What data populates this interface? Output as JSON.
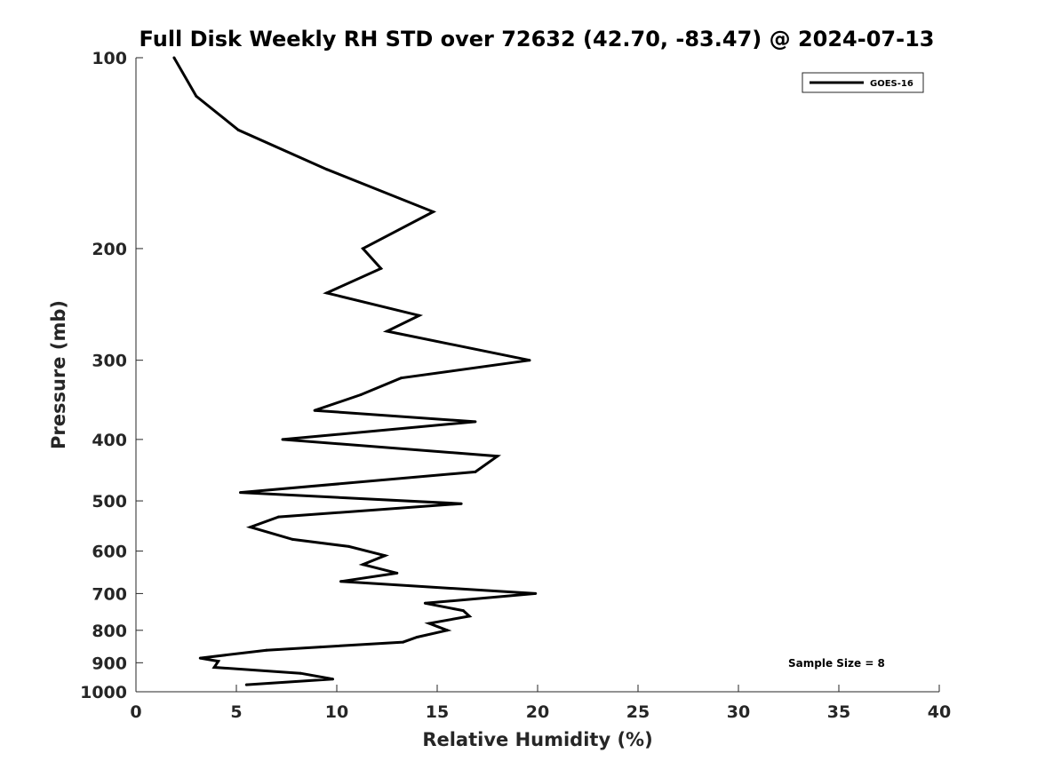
{
  "chart_data": {
    "type": "line",
    "title": "Full Disk Weekly RH STD over 72632 (42.70, -83.47) @ 2024-07-13",
    "xlabel": "Relative Humidity (%)",
    "ylabel": "Pressure (mb)",
    "xlim": [
      0,
      40
    ],
    "ylim": [
      100,
      1000
    ],
    "yscale": "log",
    "y_reversed": true,
    "grid": false,
    "x_ticks": [
      0,
      5,
      10,
      15,
      20,
      25,
      30,
      35,
      40
    ],
    "x_tick_labels": [
      "0",
      "5",
      "10",
      "15",
      "20",
      "25",
      "30",
      "35",
      "40"
    ],
    "y_ticks": [
      100,
      200,
      300,
      400,
      500,
      600,
      700,
      800,
      900,
      1000
    ],
    "y_tick_labels": [
      "100",
      "200",
      "300",
      "400",
      "500",
      "600",
      "700",
      "800",
      "900",
      "1000"
    ],
    "legend_position": "top-right",
    "series": [
      {
        "name": "GOES-16",
        "color": "#000000",
        "x": [
          1.9,
          3.0,
          5.1,
          9.5,
          14.8,
          11.3,
          12.2,
          9.5,
          14.1,
          12.5,
          19.6,
          13.2,
          11.2,
          8.9,
          16.9,
          7.3,
          18.0,
          16.9,
          5.2,
          16.2,
          7.1,
          5.7,
          7.8,
          10.6,
          12.4,
          11.3,
          13.0,
          10.2,
          19.9,
          14.4,
          16.3,
          16.6,
          14.6,
          15.5,
          14.0,
          13.3,
          9.2,
          6.5,
          3.2,
          4.1,
          3.9,
          8.2,
          9.8,
          5.5
        ],
        "y": [
          100,
          115,
          130,
          150,
          175,
          200,
          215,
          235,
          255,
          270,
          300,
          320,
          340,
          360,
          375,
          400,
          425,
          450,
          485,
          505,
          530,
          550,
          575,
          590,
          610,
          630,
          650,
          670,
          700,
          725,
          745,
          760,
          780,
          800,
          820,
          835,
          850,
          860,
          885,
          895,
          915,
          935,
          955,
          975
        ]
      }
    ],
    "annotations": [
      {
        "text": "Sample Size = 8"
      }
    ]
  }
}
